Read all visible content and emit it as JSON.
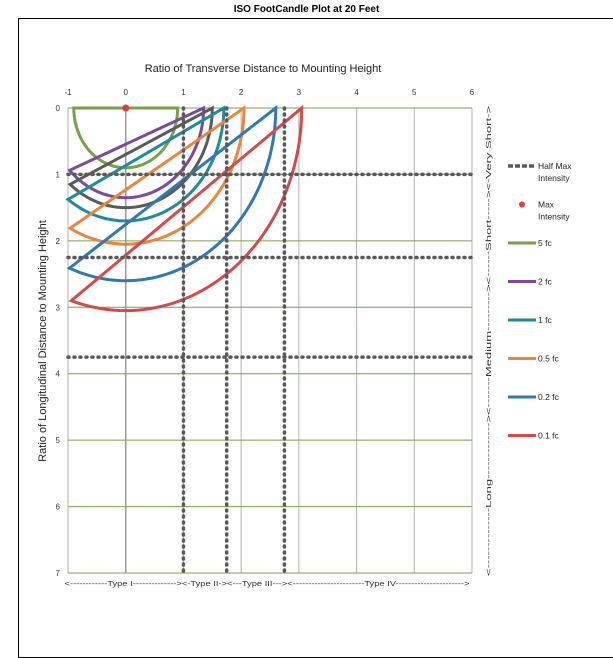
{
  "chart_data": {
    "type": "line",
    "title": "ISO FootCandle Plot at 20 Feet",
    "xlabel": "Ratio of Transverse Distance to Mounting Height",
    "ylabel": "Ratio of Longitudinal Distance to Mounting Height",
    "xlim": [
      -1,
      6
    ],
    "ylim": [
      7,
      0
    ],
    "x_ticks": [
      "-1",
      "0",
      "1",
      "2",
      "3",
      "4",
      "5",
      "6"
    ],
    "y_ticks": [
      "0",
      "1",
      "2",
      "3",
      "4",
      "5",
      "6",
      "7"
    ],
    "grid": true,
    "legend_position": "right",
    "type_labels": "<------------Type I--------------><-Type  II-><---Type III---><-----------------------Type IV---------------------->",
    "range_labels": "<--------------Long-------------><-------Medium---------><------Short-----><-Very Short->",
    "half_max_lines": {
      "x": [
        1,
        1.75,
        2.75
      ],
      "y": [
        1,
        2.25,
        3.75
      ],
      "color": "#595959"
    },
    "max_intensity": {
      "x": 0,
      "y": 0,
      "color": "#e03c3c"
    },
    "series": [
      {
        "name": "5 fc",
        "color": "#77a04b",
        "rx": 0.9,
        "ry": 0.9,
        "y_end": 0
      },
      {
        "name": "2 fc",
        "color": "#7b4a9e",
        "rx": 1.35,
        "ry": 1.35,
        "y_end": 0
      },
      {
        "name": "",
        "color": "#5a5a5a",
        "rx": 1.5,
        "ry": 1.5,
        "y_end": 0
      },
      {
        "name": "1 fc",
        "color": "#1d8a9d",
        "rx": 1.7,
        "ry": 1.7,
        "y_end": 0
      },
      {
        "name": "0.5 fc",
        "color": "#e6873b",
        "rx": 2.05,
        "ry": 2.05,
        "y_end": 0
      },
      {
        "name": "0.2 fc",
        "color": "#2f79b3",
        "rx": 2.6,
        "ry": 2.6,
        "y_end": 0
      },
      {
        "name": "0.1 fc",
        "color": "#d24a4a",
        "rx": 3.05,
        "ry": 3.05,
        "y_end": 0
      }
    ],
    "legend": [
      {
        "label": "Half Max Intensity",
        "color": "#595959",
        "kind": "dash"
      },
      {
        "label": "Max Intensity",
        "color": "#e03c3c",
        "kind": "dot"
      },
      {
        "label": "5 fc",
        "color": "#77a04b",
        "kind": "line"
      },
      {
        "label": "2 fc",
        "color": "#7b4a9e",
        "kind": "line"
      },
      {
        "label": "1 fc",
        "color": "#1d8a9d",
        "kind": "line"
      },
      {
        "label": "0.5 fc",
        "color": "#e6873b",
        "kind": "line"
      },
      {
        "label": "0.2 fc",
        "color": "#2f79b3",
        "kind": "line"
      },
      {
        "label": "0.1 fc",
        "color": "#d24a4a",
        "kind": "line"
      }
    ],
    "grid_colors": {
      "horizontal": "#77a04b",
      "vertical": "#b0b0b0"
    }
  }
}
